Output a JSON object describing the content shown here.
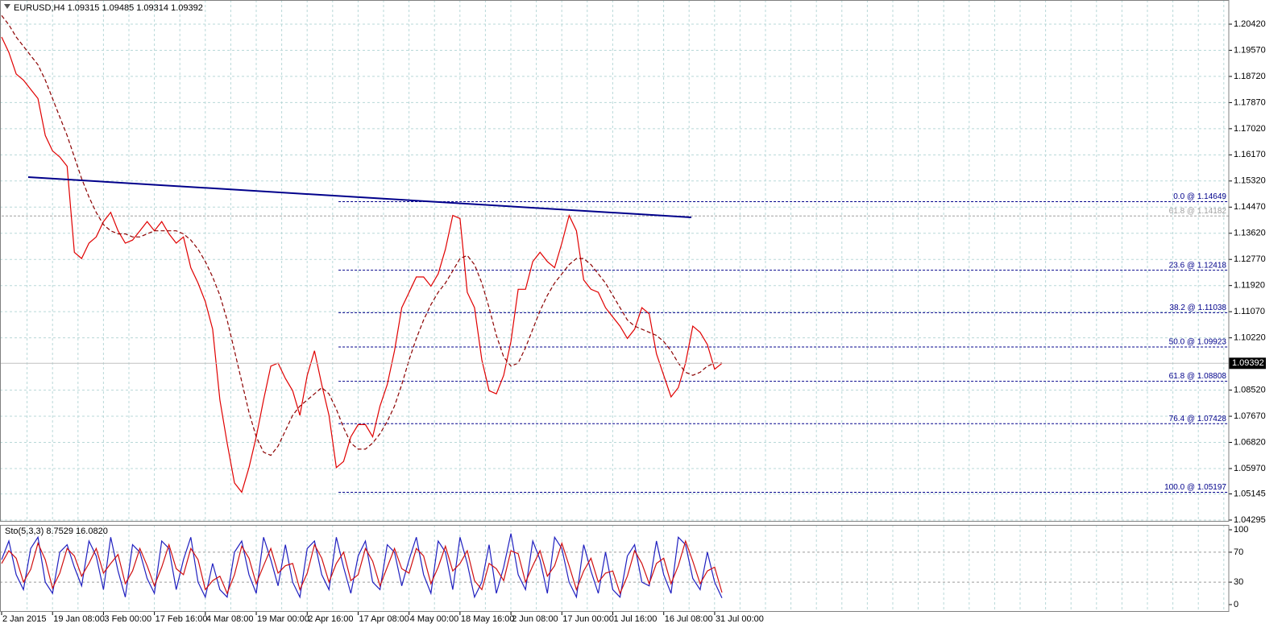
{
  "chart_data": [
    {
      "type": "line",
      "title": "EURUSD,H4  1.09315 1.09485 1.09314 1.09392",
      "categories": [
        "2 Jan 2015",
        null,
        null,
        null,
        null,
        null,
        null,
        "19 Jan 08:00",
        null,
        null,
        null,
        null,
        null,
        null,
        "3 Feb 00:00",
        null,
        null,
        null,
        null,
        null,
        null,
        "17 Feb 16:00",
        null,
        null,
        null,
        null,
        null,
        null,
        "4 Mar 08:00",
        null,
        null,
        null,
        null,
        null,
        null,
        "19 Mar 00:00",
        null,
        null,
        null,
        null,
        null,
        null,
        "2 Apr 16:00",
        null,
        null,
        null,
        null,
        null,
        null,
        "17 Apr 08:00",
        null,
        null,
        null,
        null,
        null,
        null,
        "4 May 00:00",
        null,
        null,
        null,
        null,
        null,
        null,
        "18 May 16:00",
        null,
        null,
        null,
        null,
        null,
        null,
        "2 Jun 08:00",
        null,
        null,
        null,
        null,
        null,
        null,
        "17 Jun 00:00",
        null,
        null,
        null,
        null,
        null,
        null,
        "1 Jul 16:00",
        null,
        null,
        null,
        null,
        null,
        null,
        "16 Jul 08:00",
        null,
        null,
        null,
        null,
        null,
        null,
        "31 Jul 00:00",
        null
      ],
      "series": [
        {
          "color": "#e00000",
          "values": [
            1.2,
            1.195,
            1.188,
            1.186,
            1.183,
            1.18,
            1.168,
            1.163,
            1.161,
            1.158,
            1.13,
            1.128,
            1.133,
            1.135,
            1.14,
            1.143,
            1.137,
            1.133,
            1.134,
            1.137,
            1.14,
            1.137,
            1.14,
            1.136,
            1.133,
            1.135,
            1.125,
            1.12,
            1.114,
            1.105,
            1.082,
            1.068,
            1.055,
            1.052,
            1.06,
            1.07,
            1.082,
            1.093,
            1.094,
            1.089,
            1.085,
            1.077,
            1.09,
            1.098,
            1.087,
            1.077,
            1.06,
            1.062,
            1.07,
            1.074,
            1.074,
            1.07,
            1.08,
            1.087,
            1.098,
            1.112,
            1.117,
            1.122,
            1.122,
            1.119,
            1.123,
            1.131,
            1.142,
            1.141,
            1.117,
            1.112,
            1.095,
            1.085,
            1.084,
            1.09,
            1.101,
            1.118,
            1.118,
            1.127,
            1.13,
            1.127,
            1.125,
            1.133,
            1.142,
            1.137,
            1.121,
            1.118,
            1.117,
            1.112,
            1.109,
            1.106,
            1.102,
            1.105,
            1.112,
            1.11,
            1.097,
            1.09,
            1.083,
            1.086,
            1.094,
            1.106,
            1.104,
            1.1,
            1.092,
            1.09392
          ]
        },
        {
          "color": "#8b0000",
          "dashed": true,
          "values": [
            1.207,
            1.204,
            1.2,
            1.197,
            1.194,
            1.191,
            1.186,
            1.18,
            1.174,
            1.168,
            1.161,
            1.154,
            1.148,
            1.143,
            1.139,
            1.137,
            1.136,
            1.136,
            1.135,
            1.135,
            1.136,
            1.137,
            1.137,
            1.137,
            1.137,
            1.136,
            1.134,
            1.131,
            1.127,
            1.122,
            1.116,
            1.108,
            1.098,
            1.088,
            1.078,
            1.07,
            1.065,
            1.064,
            1.067,
            1.072,
            1.077,
            1.08,
            1.082,
            1.084,
            1.086,
            1.084,
            1.079,
            1.073,
            1.068,
            1.066,
            1.066,
            1.068,
            1.071,
            1.075,
            1.08,
            1.087,
            1.095,
            1.102,
            1.108,
            1.113,
            1.117,
            1.12,
            1.124,
            1.128,
            1.129,
            1.126,
            1.12,
            1.112,
            1.103,
            1.096,
            1.093,
            1.094,
            1.099,
            1.105,
            1.111,
            1.116,
            1.12,
            1.123,
            1.126,
            1.128,
            1.128,
            1.126,
            1.123,
            1.12,
            1.116,
            1.112,
            1.108,
            1.106,
            1.105,
            1.104,
            1.103,
            1.101,
            1.098,
            1.094,
            1.091,
            1.09,
            1.091,
            1.093,
            1.094,
            1.094
          ]
        }
      ],
      "ylim": [
        1.04242,
        1.21205
      ],
      "yticks": [
        {
          "value": 1.2042,
          "label": "1.20420"
        },
        {
          "value": 1.1957,
          "label": "1.19570"
        },
        {
          "value": 1.1872,
          "label": "1.18720"
        },
        {
          "value": 1.1787,
          "label": "1.17870"
        },
        {
          "value": 1.1702,
          "label": "1.17020"
        },
        {
          "value": 1.1617,
          "label": "1.16170"
        },
        {
          "value": 1.1532,
          "label": "1.15320"
        },
        {
          "value": 1.1447,
          "label": "1.14470"
        },
        {
          "value": 1.1362,
          "label": "1.13620"
        },
        {
          "value": 1.1277,
          "label": "1.12770"
        },
        {
          "value": 1.1192,
          "label": "1.11920"
        },
        {
          "value": 1.1107,
          "label": "1.11070"
        },
        {
          "value": 1.1022,
          "label": "1.10220"
        },
        {
          "value": 1.0852,
          "label": "1.08520"
        },
        {
          "value": 1.0767,
          "label": "1.07670"
        },
        {
          "value": 1.0682,
          "label": "1.06820"
        },
        {
          "value": 1.0597,
          "label": "1.05970"
        },
        {
          "value": 1.05145,
          "label": "1.05145"
        },
        {
          "value": 1.04295,
          "label": "1.04295"
        }
      ],
      "grid": true,
      "last_price": 1.09392,
      "trendline": {
        "x": [
          3.65,
          94.8
        ],
        "values": [
          1.15446,
          1.14137
        ],
        "color": "#00008b"
      },
      "levels": [
        {
          "label": "0.0 @ 1.14649",
          "value": 1.14649,
          "start": 46.3,
          "color": "#00008b"
        },
        {
          "label": "61.8 @ 1.14182",
          "value": 1.14182,
          "start": 0,
          "color": "#a0a0a0"
        },
        {
          "label": "23.6 @ 1.12418",
          "value": 1.12418,
          "start": 46.3,
          "color": "#00008b"
        },
        {
          "label": "38.2 @ 1.11038",
          "value": 1.11038,
          "start": 46.3,
          "color": "#00008b"
        },
        {
          "label": "50.0 @ 1.09923",
          "value": 1.09923,
          "start": 46.3,
          "color": "#00008b"
        },
        {
          "label": "61.8 @ 1.08808",
          "value": 1.08808,
          "start": 46.3,
          "color": "#00008b"
        },
        {
          "label": "76.4 @ 1.07428",
          "value": 1.07428,
          "start": 46.3,
          "color": "#00008b"
        },
        {
          "label": "100.0 @ 1.05197",
          "value": 1.05197,
          "start": 46.3,
          "color": "#00008b"
        }
      ]
    },
    {
      "type": "line",
      "title": "Sto(5,3,3) 8.7529 16.0820",
      "series": [
        {
          "color": "#2020c0",
          "values": [
            60,
            85,
            40,
            20,
            75,
            90,
            30,
            15,
            70,
            80,
            50,
            25,
            85,
            65,
            20,
            90,
            45,
            10,
            80,
            70,
            35,
            15,
            85,
            75,
            20,
            60,
            90,
            30,
            10,
            55,
            20,
            10,
            70,
            85,
            40,
            15,
            90,
            60,
            25,
            80,
            30,
            10,
            75,
            85,
            40,
            20,
            90,
            50,
            15,
            65,
            85,
            30,
            20,
            80,
            70,
            25,
            60,
            90,
            40,
            15,
            85,
            70,
            20,
            90,
            55,
            10,
            30,
            80,
            15,
            50,
            95,
            40,
            20,
            85,
            60,
            15,
            90,
            75,
            30,
            10,
            80,
            45,
            15,
            70,
            20,
            10,
            65,
            80,
            30,
            25,
            85,
            40,
            15,
            90,
            80,
            35,
            20,
            70,
            30,
            8.7529
          ]
        },
        {
          "color": "#d01010",
          "values": [
            55,
            72,
            62,
            30,
            47,
            82,
            60,
            22,
            42,
            75,
            65,
            38,
            55,
            75,
            42,
            55,
            67,
            28,
            45,
            75,
            52,
            25,
            50,
            80,
            48,
            40,
            75,
            60,
            20,
            32,
            38,
            15,
            40,
            78,
            62,
            28,
            52,
            75,
            42,
            52,
            55,
            20,
            42,
            80,
            62,
            30,
            55,
            70,
            32,
            40,
            75,
            58,
            25,
            50,
            75,
            48,
            42,
            75,
            65,
            28,
            50,
            78,
            45,
            55,
            72,
            32,
            20,
            55,
            48,
            32,
            72,
            68,
            30,
            52,
            72,
            38,
            52,
            82,
            52,
            20,
            45,
            62,
            30,
            42,
            45,
            15,
            38,
            72,
            55,
            28,
            55,
            62,
            28,
            52,
            85,
            58,
            28,
            45,
            50,
            16.082
          ]
        }
      ],
      "ylim": [
        -9.7,
        106.5
      ],
      "yticks": [
        100,
        70,
        30,
        0
      ],
      "level_lines": [
        70,
        30
      ]
    }
  ]
}
